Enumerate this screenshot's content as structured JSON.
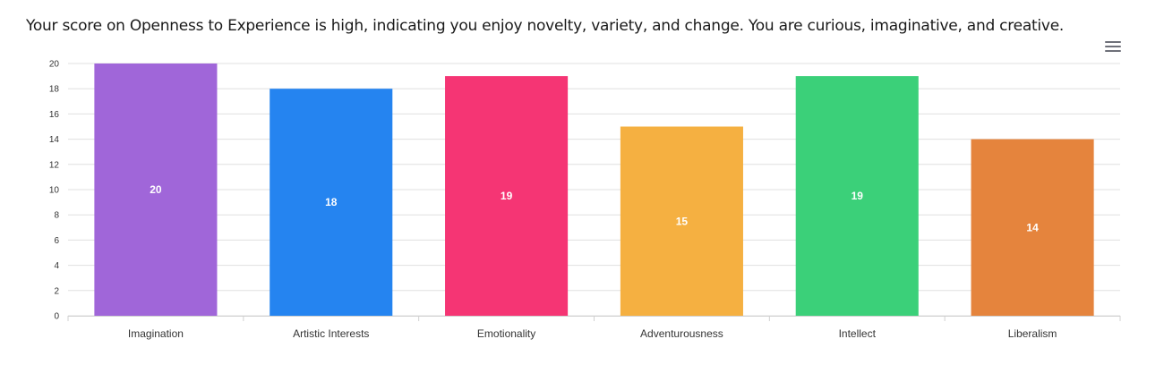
{
  "description": "Your score on Openness to Experience is high, indicating you enjoy novelty, variety, and change. You are curious, imaginative, and creative.",
  "toolbar": {
    "menu_icon": "hamburger-menu-icon"
  },
  "chart_data": {
    "type": "bar",
    "title": "",
    "xlabel": "",
    "ylabel": "",
    "categories": [
      "Imagination",
      "Artistic Interests",
      "Emotionality",
      "Adventurousness",
      "Intellect",
      "Liberalism"
    ],
    "values": [
      20,
      18,
      19,
      15,
      19,
      14
    ],
    "colors": [
      "#a066d9",
      "#2584f0",
      "#f53574",
      "#f5b041",
      "#3bd079",
      "#e5843d"
    ],
    "ylim": [
      0,
      20
    ],
    "yticks": [
      0,
      2,
      4,
      6,
      8,
      10,
      12,
      14,
      16,
      18,
      20
    ],
    "grid": true,
    "data_labels": true,
    "legend": "none"
  }
}
